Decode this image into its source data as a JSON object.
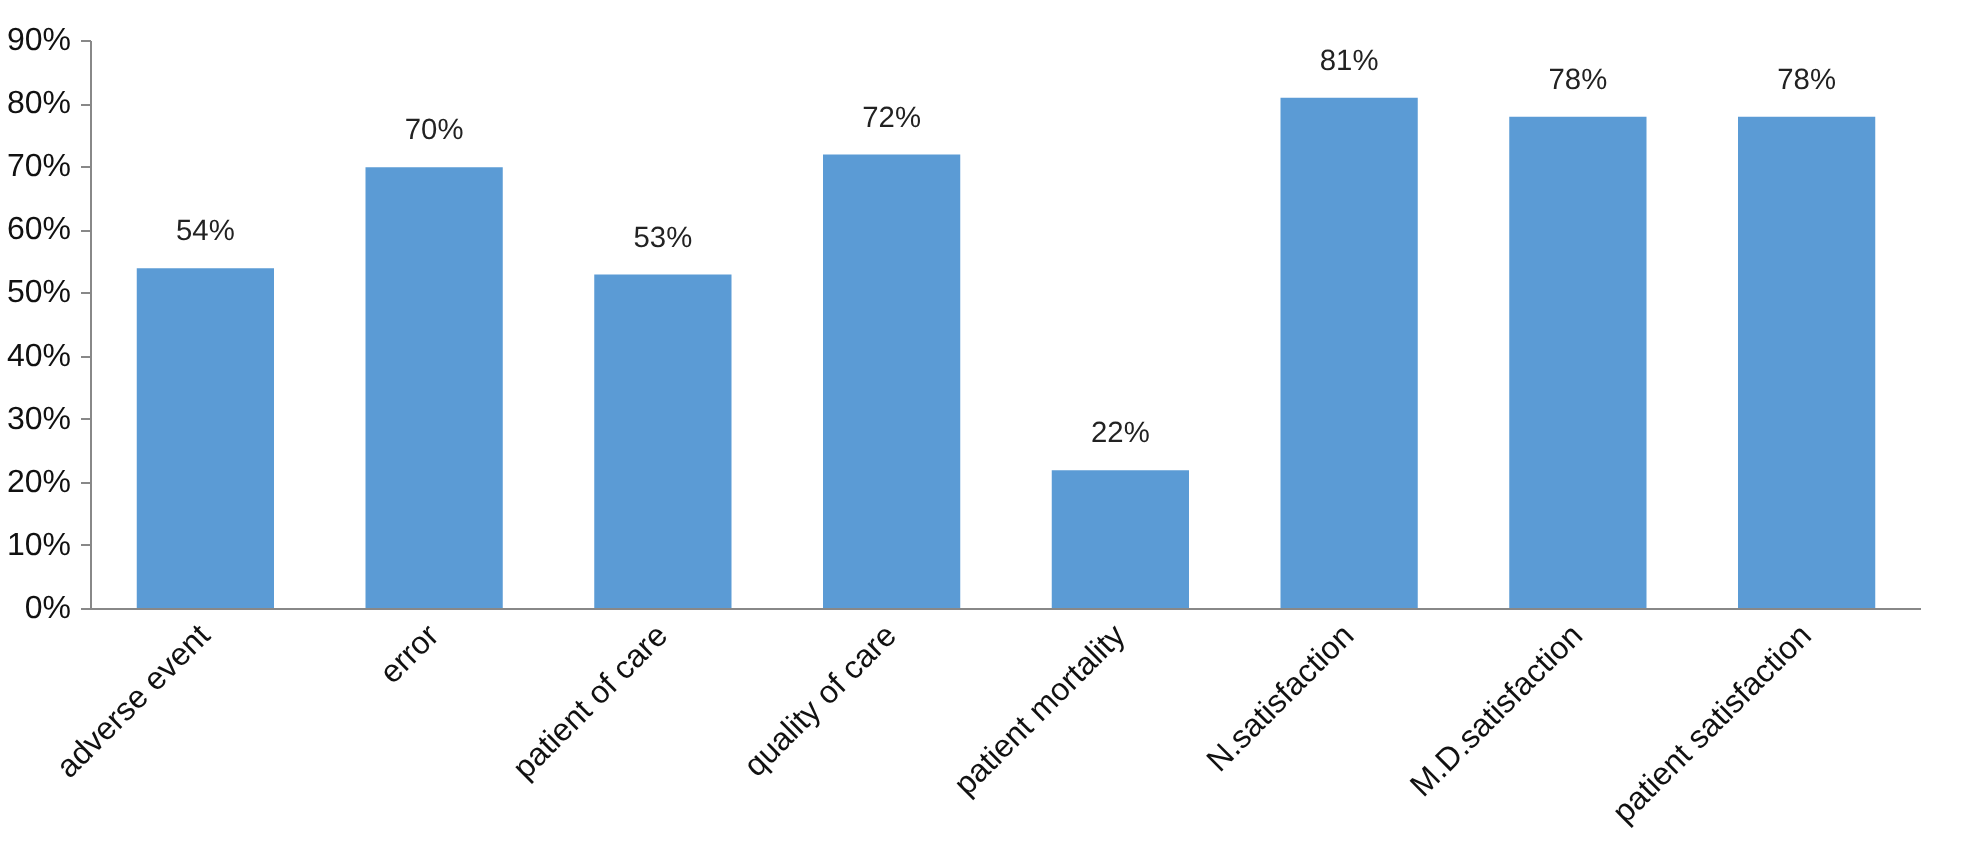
{
  "chart_data": {
    "type": "bar",
    "categories": [
      "adverse event",
      "error",
      "patient of care",
      "quality of care",
      "patient mortality",
      "N.satisfaction",
      "M.D.satisfaction",
      "patient satisfaction"
    ],
    "values": [
      54,
      70,
      53,
      72,
      22,
      81,
      78,
      78
    ],
    "value_labels": [
      "54%",
      "70%",
      "53%",
      "72%",
      "22%",
      "81%",
      "78%",
      "78%"
    ],
    "color": "#5b9bd5",
    "ylim": [
      0,
      90
    ],
    "yticks": [
      {
        "value": 0,
        "label": "0%"
      },
      {
        "value": 10,
        "label": "10%"
      },
      {
        "value": 20,
        "label": "20%"
      },
      {
        "value": 30,
        "label": "30%"
      },
      {
        "value": 40,
        "label": "40%"
      },
      {
        "value": 50,
        "label": "50%"
      },
      {
        "value": 60,
        "label": "60%"
      },
      {
        "value": 70,
        "label": "70%"
      },
      {
        "value": 80,
        "label": "80%"
      },
      {
        "value": 90,
        "label": "90%"
      }
    ],
    "grid": false
  }
}
